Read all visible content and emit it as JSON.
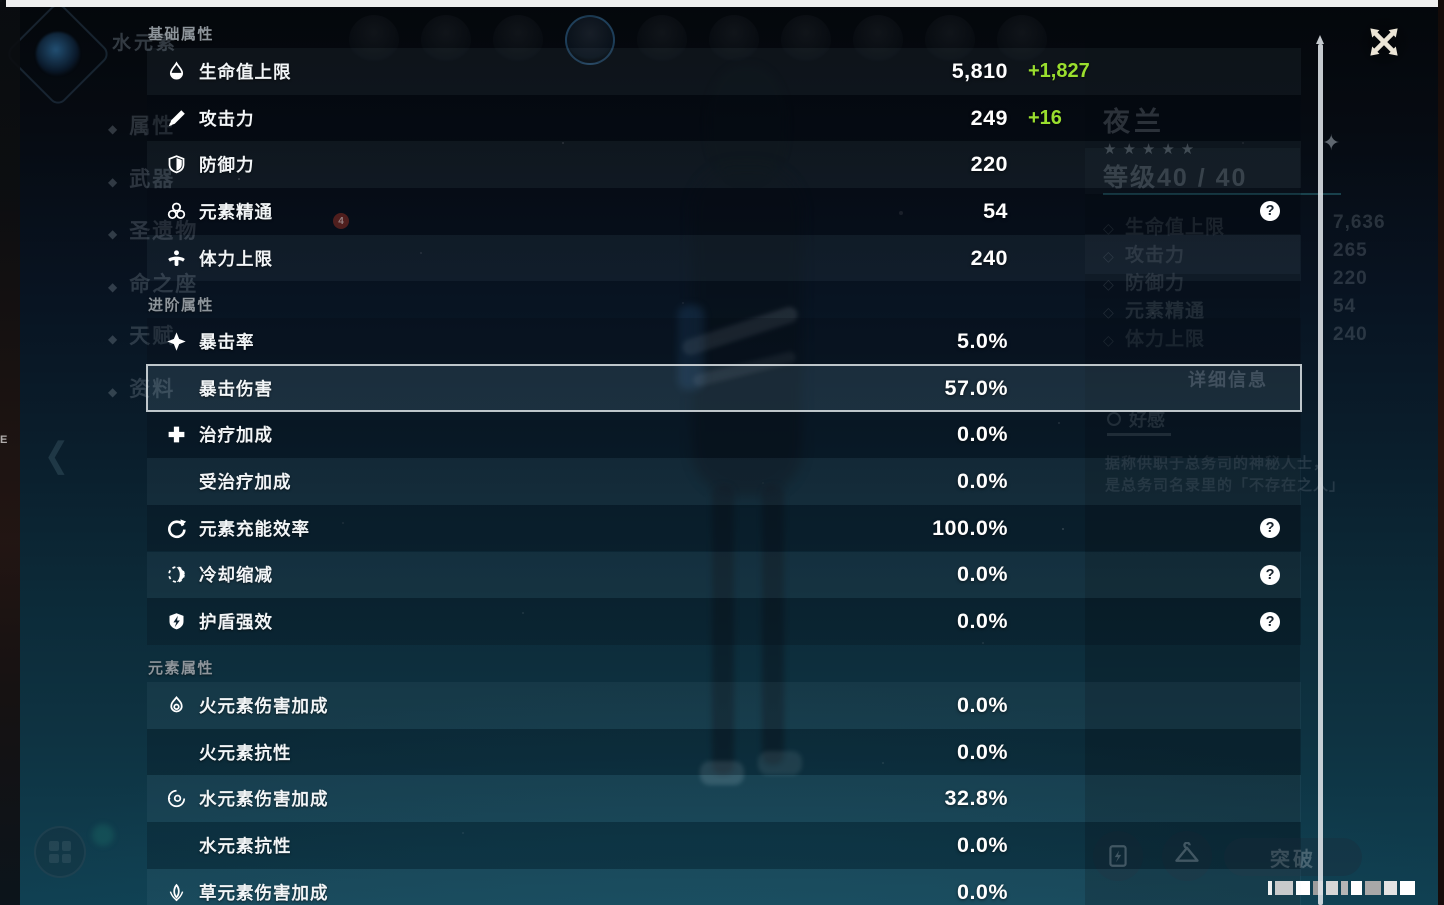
{
  "overlay": {
    "help_glyph": "?",
    "bonus_color": "#9ade2e",
    "sections": [
      {
        "title": "基础属性",
        "rows": [
          {
            "icon": "hp-icon",
            "label": "生命值上限",
            "value": "5,810",
            "bonus": "+1,827"
          },
          {
            "icon": "atk-icon",
            "label": "攻击力",
            "value": "249",
            "bonus": "+16"
          },
          {
            "icon": "def-icon",
            "label": "防御力",
            "value": "220"
          },
          {
            "icon": "em-icon",
            "label": "元素精通",
            "value": "54",
            "help": true
          },
          {
            "icon": "stamina-icon",
            "label": "体力上限",
            "value": "240"
          }
        ]
      },
      {
        "title": "进阶属性",
        "rows": [
          {
            "icon": "crit-rate-icon",
            "label": "暴击率",
            "value": "5.0%"
          },
          {
            "label": "暴击伤害",
            "value": "57.0%",
            "highlighted": true
          },
          {
            "icon": "healing-icon",
            "label": "治疗加成",
            "value": "0.0%"
          },
          {
            "label": "受治疗加成",
            "value": "0.0%"
          },
          {
            "icon": "energy-recharge-icon",
            "label": "元素充能效率",
            "value": "100.0%",
            "help": true
          },
          {
            "icon": "cooldown-icon",
            "label": "冷却缩减",
            "value": "0.0%",
            "help": true
          },
          {
            "icon": "shield-strength-icon",
            "label": "护盾强效",
            "value": "0.0%",
            "help": true
          }
        ]
      },
      {
        "title": "元素属性",
        "rows": [
          {
            "icon": "pyro-icon",
            "label": "火元素伤害加成",
            "value": "0.0%"
          },
          {
            "label": "火元素抗性",
            "value": "0.0%"
          },
          {
            "icon": "hydro-icon",
            "label": "水元素伤害加成",
            "value": "32.8%"
          },
          {
            "label": "水元素抗性",
            "value": "0.0%"
          },
          {
            "icon": "dendro-icon",
            "label": "草元素伤害加成",
            "value": "0.0%"
          }
        ]
      }
    ]
  },
  "background": {
    "element_label": "水元素",
    "menu_items": [
      "属性",
      "武器",
      "圣遗物",
      "命之座",
      "天赋",
      "资料"
    ],
    "artifact_badge": "4",
    "character": {
      "name": "夜兰",
      "stars": "★★★★★",
      "level_label": "等级40 / 40",
      "stats": [
        {
          "label": "生命值上限",
          "value": "7,636"
        },
        {
          "label": "攻击力",
          "value": "265"
        },
        {
          "label": "防御力",
          "value": "220"
        },
        {
          "label": "元素精通",
          "value": "54"
        },
        {
          "label": "体力上限",
          "value": "240"
        }
      ],
      "details_label": "详细信息",
      "favor_label": "好感",
      "description_lines": [
        "据称供职于总务司的神秘人士，",
        "是总务司名录里的「不存在之人」"
      ]
    },
    "ascend_label": "突破"
  }
}
